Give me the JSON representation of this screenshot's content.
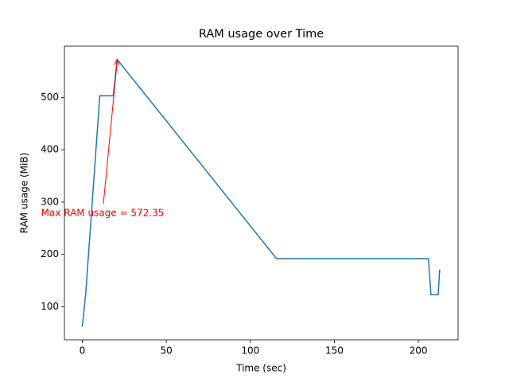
{
  "chart_data": {
    "type": "line",
    "title": "RAM usage over Time",
    "x_label": "Time (sec)",
    "y_label": "RAM usage (MiB)",
    "x": [
      0,
      2,
      10.4,
      18.4,
      20.75,
      115.6,
      206,
      207.5,
      211.8,
      212.7
    ],
    "series": [
      {
        "name": "RAM usage",
        "color": "#1f77b4",
        "values": [
          62,
          124,
          503,
          503,
          572.35,
          192,
          192,
          123,
          123,
          171
        ]
      }
    ],
    "xlim": [
      -10.65,
      223.65
    ],
    "xticks": [
      0,
      50,
      100,
      150,
      200
    ],
    "ylim": [
      36.9,
      597.9
    ],
    "yticks": [
      100,
      200,
      300,
      400,
      500
    ],
    "annotation": {
      "text": "Max RAM usage = 572.35",
      "color": "red"
    }
  }
}
